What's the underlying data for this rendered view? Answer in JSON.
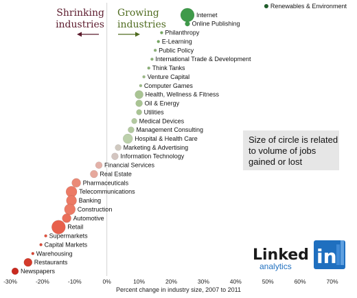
{
  "chart_data": {
    "type": "scatter",
    "xlabel": "Percent change in industry size, 2007 to 2011",
    "ylabel": "",
    "xlim": [
      -30,
      70
    ],
    "x_ticks": [
      -30,
      -20,
      -10,
      0,
      10,
      20,
      30,
      40,
      50,
      60,
      70
    ],
    "x_tick_labels": [
      "-30%",
      "-20%",
      "-10%",
      "0%",
      "10%",
      "20%",
      "30%",
      "40%",
      "50%",
      "60%",
      "70%"
    ],
    "grid": false,
    "legend": "none",
    "size_encoding": "volume of jobs gained or lost",
    "points": [
      {
        "label": "Renewables & Environment",
        "x": 49.5,
        "size": 3,
        "color": "#1f5e2a"
      },
      {
        "label": "Internet",
        "x": 25,
        "size": 10,
        "color": "#3f9a4a"
      },
      {
        "label": "Online Publishing",
        "x": 25,
        "size": 3.5,
        "color": "#3f9a4a"
      },
      {
        "label": "Philanthropy",
        "x": 17,
        "size": 2,
        "color": "#74a85f"
      },
      {
        "label": "E-Learning",
        "x": 16,
        "size": 2,
        "color": "#74a85f"
      },
      {
        "label": "Public Policy",
        "x": 15,
        "size": 2,
        "color": "#8cb277"
      },
      {
        "label": "International Trade & Development",
        "x": 14,
        "size": 2,
        "color": "#8cb277"
      },
      {
        "label": "Think Tanks",
        "x": 13,
        "size": 2,
        "color": "#8cb277"
      },
      {
        "label": "Venture Capital",
        "x": 11.5,
        "size": 2,
        "color": "#9cbb86"
      },
      {
        "label": "Computer Games",
        "x": 10.5,
        "size": 2,
        "color": "#9cbb86"
      },
      {
        "label": "Health, Wellness & Fitness",
        "x": 10,
        "size": 6,
        "color": "#a9c493"
      },
      {
        "label": "Oil & Energy",
        "x": 10,
        "size": 5,
        "color": "#a9c493"
      },
      {
        "label": "Utilities",
        "x": 10,
        "size": 4,
        "color": "#a9c493"
      },
      {
        "label": "Medical Devices",
        "x": 8.5,
        "size": 4,
        "color": "#b3c9a0"
      },
      {
        "label": "Management Consulting",
        "x": 7.5,
        "size": 4.5,
        "color": "#b3c9a0"
      },
      {
        "label": "Hospital & Health Care",
        "x": 6.5,
        "size": 7,
        "color": "#bcd0ab"
      },
      {
        "label": "Marketing & Advertising",
        "x": 3.5,
        "size": 4.5,
        "color": "#d0c9c0"
      },
      {
        "label": "Information Technology",
        "x": 2.5,
        "size": 5,
        "color": "#d3c5c0"
      },
      {
        "label": "Financial Services",
        "x": -2.5,
        "size": 5,
        "color": "#e3b1a8"
      },
      {
        "label": "Real Estate",
        "x": -4,
        "size": 5.5,
        "color": "#e6a89c"
      },
      {
        "label": "Pharmaceuticals",
        "x": -9.5,
        "size": 6.5,
        "color": "#ea8a77"
      },
      {
        "label": "Telecommunications",
        "x": -11,
        "size": 8,
        "color": "#ec7a65"
      },
      {
        "label": "Banking",
        "x": -11,
        "size": 7.5,
        "color": "#ec7a65"
      },
      {
        "label": "Construction",
        "x": -11.5,
        "size": 8,
        "color": "#ec7a65"
      },
      {
        "label": "Automotive",
        "x": -12.5,
        "size": 6.5,
        "color": "#ea6f5a"
      },
      {
        "label": "Retail",
        "x": -15,
        "size": 10,
        "color": "#e8604c"
      },
      {
        "label": "Supermarkets",
        "x": -19,
        "size": 2,
        "color": "#e4533f"
      },
      {
        "label": "Capital Markets",
        "x": -20.5,
        "size": 2,
        "color": "#dc4a38"
      },
      {
        "label": "Warehousing",
        "x": -23,
        "size": 2,
        "color": "#d84534"
      },
      {
        "label": "Restaurants",
        "x": -24.5,
        "size": 6,
        "color": "#d43b2b"
      },
      {
        "label": "Newspapers",
        "x": -28.5,
        "size": 5,
        "color": "#c92a20"
      }
    ]
  },
  "headers": {
    "shrinking": [
      "Shrinking",
      "industries"
    ],
    "growing": [
      "Growing",
      "industries"
    ]
  },
  "note": {
    "lines": [
      "Size of circle is related",
      "to volume of jobs",
      "gained or lost"
    ]
  },
  "logo": {
    "word": "Linked",
    "in": "in",
    "sub": "analytics"
  },
  "colors": {
    "shrink_header": "#5b1a2c",
    "grow_header": "#4f6b1f",
    "logo_blue": "#1f6fbf",
    "note_bg": "#e6e6e6"
  }
}
